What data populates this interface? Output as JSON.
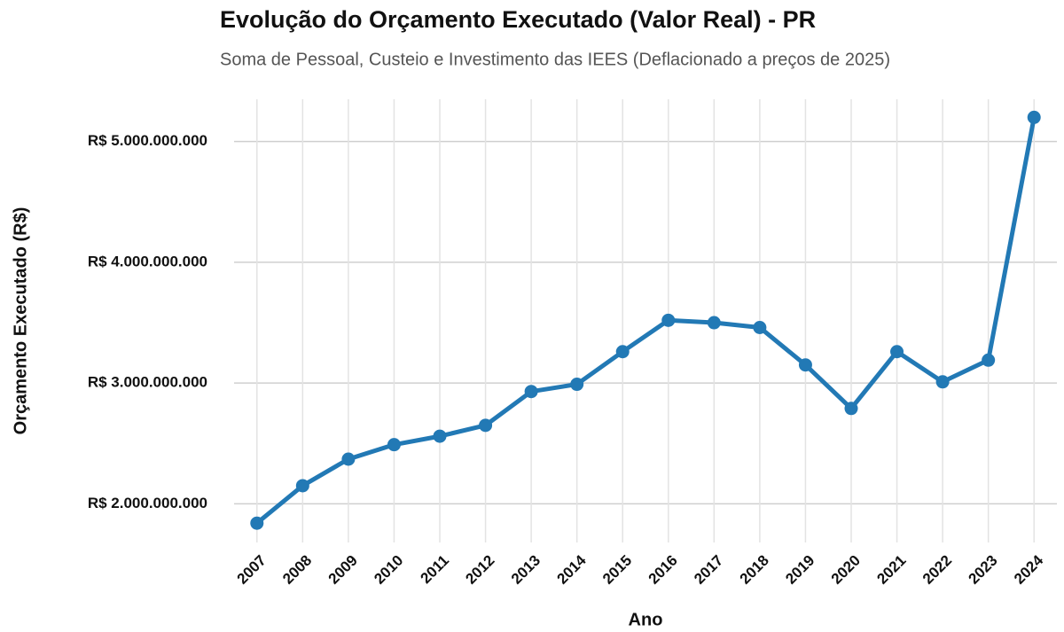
{
  "chart_data": {
    "type": "line",
    "title": "Evolução do Orçamento Executado (Valor Real) - PR",
    "subtitle": "Soma de Pessoal, Custeio e Investimento das IEES (Deflacionado a preços de 2025)",
    "x_label": "Ano",
    "y_label": "Orçamento Executado (R$)",
    "categories": [
      "2007",
      "2008",
      "2009",
      "2010",
      "2011",
      "2012",
      "2013",
      "2014",
      "2015",
      "2016",
      "2017",
      "2018",
      "2019",
      "2020",
      "2021",
      "2022",
      "2023",
      "2024"
    ],
    "values": [
      1840000000,
      2150000000,
      2370000000,
      2490000000,
      2560000000,
      2650000000,
      2930000000,
      2990000000,
      3260000000,
      3520000000,
      3500000000,
      3460000000,
      3150000000,
      2790000000,
      3260000000,
      3010000000,
      3190000000,
      5200000000
    ],
    "color": "#2279b5",
    "ylim": [
      1680000000,
      5350000000
    ],
    "yticks": [
      {
        "value": 2000000000,
        "label": "R$ 2.000.000.000"
      },
      {
        "value": 3000000000,
        "label": "R$ 3.000.000.000"
      },
      {
        "value": 4000000000,
        "label": "R$ 4.000.000.000"
      },
      {
        "value": 5000000000,
        "label": "R$ 5.000.000.000"
      }
    ],
    "grid": true
  }
}
